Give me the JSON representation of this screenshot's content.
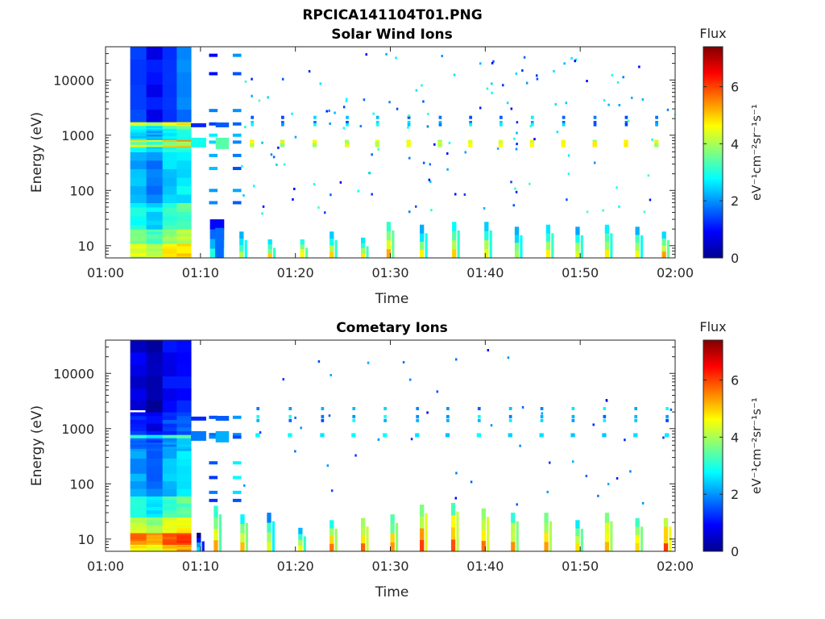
{
  "figure_title": "RPCICA141104T01.PNG",
  "chart_data": [
    {
      "type": "heatmap",
      "title": "Solar Wind Ions",
      "xlabel": "Time",
      "ylabel": "Energy (eV)",
      "x_ticks": [
        "01:00",
        "01:10",
        "01:20",
        "01:30",
        "01:40",
        "01:50",
        "02:00"
      ],
      "xlim_minutes": [
        0,
        60
      ],
      "y_ticks": [
        "10",
        "100",
        "1000",
        "10000"
      ],
      "ylim": [
        6,
        40000
      ],
      "yscale": "log",
      "colorbar": {
        "title": "Flux",
        "label": "eV⁻¹cm⁻²sr⁻¹s⁻¹",
        "ticks": [
          "0",
          "2",
          "4",
          "6"
        ],
        "clim": [
          0,
          7.4
        ],
        "colormap": "jet"
      },
      "early_block": {
        "x_range_minutes": [
          2.6,
          9.0
        ],
        "y_range": [
          6,
          40000
        ],
        "bands": [
          {
            "range": [
              6,
              11
            ],
            "value": 4.4
          },
          {
            "range": [
              11,
              20
            ],
            "value": 3.6
          },
          {
            "range": [
              20,
              60
            ],
            "value": 2.9
          },
          {
            "range": [
              60,
              500
            ],
            "value": 2.2
          },
          {
            "range": [
              500,
              620
            ],
            "value": 2.7
          },
          {
            "range": [
              620,
              680
            ],
            "value": 4.7
          },
          {
            "range": [
              680,
              780
            ],
            "value": 3.4
          },
          {
            "range": [
              780,
              830
            ],
            "value": 4.9
          },
          {
            "range": [
              830,
              1300
            ],
            "value": 2.5
          },
          {
            "range": [
              1300,
              1500
            ],
            "value": 3.0
          },
          {
            "range": [
              1500,
              1750
            ],
            "value": 4.3
          },
          {
            "range": [
              1750,
              40000
            ],
            "value": 1.3
          }
        ]
      },
      "scans_minutes": [
        15.2,
        18.4,
        21.8,
        25.2,
        28.4,
        31.7,
        35.0,
        38.2,
        41.4,
        44.7,
        48.0,
        51.3,
        54.6,
        57.8
      ],
      "sparse_columns_minutes": [
        10.9,
        13.4
      ],
      "low_energy_bursts": [
        {
          "t": 11.0,
          "lo": 6,
          "hi": 30,
          "v": 3.2
        },
        {
          "t": 14.1,
          "lo": 6,
          "hi": 18,
          "v": 4.3
        },
        {
          "t": 17.1,
          "lo": 6,
          "hi": 13,
          "v": 4.6
        },
        {
          "t": 20.5,
          "lo": 6,
          "hi": 13,
          "v": 4.9
        },
        {
          "t": 23.6,
          "lo": 6,
          "hi": 18,
          "v": 4.6
        },
        {
          "t": 26.9,
          "lo": 6,
          "hi": 14,
          "v": 4.8
        },
        {
          "t": 29.6,
          "lo": 6,
          "hi": 27,
          "v": 5.0
        },
        {
          "t": 33.1,
          "lo": 6,
          "hi": 24,
          "v": 4.4
        },
        {
          "t": 36.5,
          "lo": 6,
          "hi": 27,
          "v": 4.6
        },
        {
          "t": 39.9,
          "lo": 6,
          "hi": 27,
          "v": 4.5
        },
        {
          "t": 43.1,
          "lo": 6,
          "hi": 22,
          "v": 4.3
        },
        {
          "t": 46.4,
          "lo": 6,
          "hi": 24,
          "v": 4.7
        },
        {
          "t": 49.5,
          "lo": 6,
          "hi": 22,
          "v": 4.6
        },
        {
          "t": 52.6,
          "lo": 6,
          "hi": 24,
          "v": 4.5
        },
        {
          "t": 55.8,
          "lo": 6,
          "hi": 22,
          "v": 4.4
        },
        {
          "t": 58.6,
          "lo": 6,
          "hi": 18,
          "v": 5.0
        }
      ]
    },
    {
      "type": "heatmap",
      "title": "Cometary Ions",
      "xlabel": "Time",
      "ylabel": "Energy (eV)",
      "x_ticks": [
        "01:00",
        "01:10",
        "01:20",
        "01:30",
        "01:40",
        "01:50",
        "02:00"
      ],
      "xlim_minutes": [
        0,
        60
      ],
      "y_ticks": [
        "10",
        "100",
        "1000",
        "10000"
      ],
      "ylim": [
        6,
        40000
      ],
      "yscale": "log",
      "colorbar": {
        "title": "Flux",
        "label": "eV⁻¹cm⁻²sr⁻¹s⁻¹",
        "ticks": [
          "0",
          "2",
          "4",
          "6"
        ],
        "clim": [
          0,
          7.4
        ],
        "colormap": "jet"
      },
      "early_block": {
        "x_range_minutes": [
          2.6,
          9.0
        ],
        "y_range": [
          6,
          40000
        ],
        "bands": [
          {
            "range": [
              6,
              8
            ],
            "value": 4.8
          },
          {
            "range": [
              8,
              13
            ],
            "value": 5.6
          },
          {
            "range": [
              13,
              25
            ],
            "value": 4.2
          },
          {
            "range": [
              25,
              60
            ],
            "value": 3.0
          },
          {
            "range": [
              60,
              400
            ],
            "value": 2.1
          },
          {
            "range": [
              400,
              680
            ],
            "value": 1.8
          },
          {
            "range": [
              680,
              780
            ],
            "value": 3.0
          },
          {
            "range": [
              780,
              2000
            ],
            "value": 1.2
          },
          {
            "range": [
              2000,
              40000
            ],
            "value": 0.7
          }
        ]
      },
      "scans_minutes": [
        15.8,
        19.2,
        22.6,
        25.9,
        29.2,
        32.6,
        35.8,
        39.1,
        42.4,
        45.7,
        49.0,
        52.3,
        55.6,
        58.9
      ],
      "sparse_columns_minutes": [
        10.9,
        13.4
      ],
      "low_energy_bursts": [
        {
          "t": 9.6,
          "lo": 6,
          "hi": 13,
          "v": 2.6
        },
        {
          "t": 11.4,
          "lo": 6,
          "hi": 40,
          "v": 4.9
        },
        {
          "t": 14.2,
          "lo": 6,
          "hi": 28,
          "v": 5.2
        },
        {
          "t": 17.0,
          "lo": 6,
          "hi": 30,
          "v": 4.2
        },
        {
          "t": 20.3,
          "lo": 6,
          "hi": 16,
          "v": 4.6
        },
        {
          "t": 23.6,
          "lo": 6,
          "hi": 22,
          "v": 5.4
        },
        {
          "t": 26.9,
          "lo": 6,
          "hi": 24,
          "v": 5.7
        },
        {
          "t": 30.0,
          "lo": 6,
          "hi": 28,
          "v": 5.3
        },
        {
          "t": 33.1,
          "lo": 6,
          "hi": 42,
          "v": 5.9
        },
        {
          "t": 36.4,
          "lo": 6,
          "hi": 45,
          "v": 5.7
        },
        {
          "t": 39.6,
          "lo": 6,
          "hi": 36,
          "v": 5.8
        },
        {
          "t": 42.7,
          "lo": 6,
          "hi": 30,
          "v": 5.2
        },
        {
          "t": 46.2,
          "lo": 6,
          "hi": 30,
          "v": 5.5
        },
        {
          "t": 49.5,
          "lo": 6,
          "hi": 22,
          "v": 5.0
        },
        {
          "t": 52.6,
          "lo": 6,
          "hi": 30,
          "v": 5.4
        },
        {
          "t": 55.8,
          "lo": 6,
          "hi": 24,
          "v": 5.2
        },
        {
          "t": 58.8,
          "lo": 6,
          "hi": 24,
          "v": 6.0
        }
      ]
    }
  ]
}
